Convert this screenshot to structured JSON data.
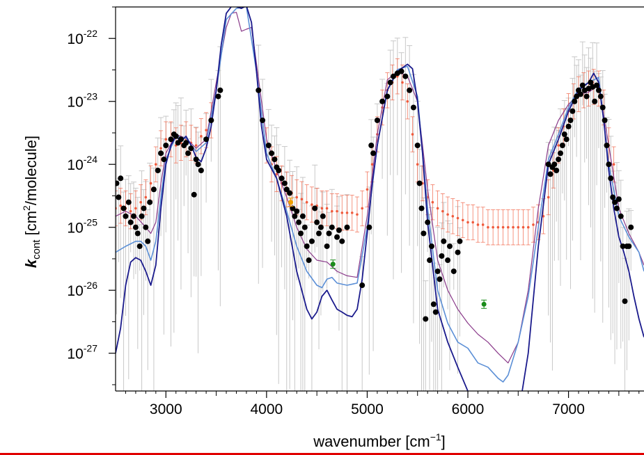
{
  "chart_data": {
    "type": "scatter",
    "title": "",
    "xlabel": "wavenumber [cm",
    "xlabel_superscript": "−1",
    "xlabel_suffix": "]",
    "ylabel_symbol": "k",
    "ylabel_subscript": "cont",
    "ylabel_unit_open": " [cm",
    "ylabel_unit_superscript": "2",
    "ylabel_unit_close": "/molecule]",
    "xlim": [
      2500,
      7750
    ],
    "ylim_log10": [
      -27.6,
      -21.5
    ],
    "y_scale": "log",
    "grid": false,
    "legend": "none",
    "x_ticks": [
      3000,
      4000,
      5000,
      6000,
      7000
    ],
    "x_tick_labels": [
      "3000",
      "4000",
      "5000",
      "6000",
      "7000"
    ],
    "y_ticks_log10": [
      -27,
      -26,
      -25,
      -24,
      -23,
      -22
    ],
    "y_tick_label_base": "10",
    "y_tick_label_exponents": [
      "-27",
      "-26",
      "-25",
      "-24",
      "-23",
      "-22"
    ],
    "colors": {
      "black_points": "#000000",
      "orange_points": "#f05a3c",
      "gray_errorbars": "#c8c8c8",
      "navy_line": "#1a1a8c",
      "lightblue_line": "#5b8fd6",
      "purple_line": "#8a3a8a",
      "green_points": "#1a8c1a",
      "gold_point": "#f0a000"
    },
    "series": [
      {
        "kind": "line",
        "color_key": "navy_line",
        "x": [
          2500,
          2550,
          2600,
          2650,
          2700,
          2750,
          2800,
          2850,
          2900,
          2950,
          3000,
          3050,
          3100,
          3150,
          3200,
          3250,
          3300,
          3350,
          3400,
          3450,
          3500,
          3550,
          3600,
          3650,
          3700,
          3750,
          3800,
          3850,
          3900,
          3950,
          4000,
          4100,
          4200,
          4300,
          4400,
          4450,
          4500,
          4550,
          4600,
          4650,
          4700,
          4750,
          4800,
          4850,
          4900,
          4950,
          5000,
          5050,
          5100,
          5200,
          5300,
          5400,
          5450,
          5500,
          5550,
          5600,
          5700,
          5800,
          5900,
          6000,
          6100,
          6200,
          6300,
          6400,
          6500,
          6600,
          6700,
          6800,
          6900,
          7000,
          7100,
          7200,
          7250,
          7300,
          7350,
          7400,
          7450,
          7500,
          7550,
          7600,
          7650,
          7700,
          7750
        ],
        "y": [
          1e-27,
          2.5e-27,
          1.2e-26,
          2.8e-26,
          3.3e-26,
          3e-26,
          2e-26,
          1.2e-26,
          2.5e-26,
          2e-25,
          1e-24,
          2e-24,
          2.8e-24,
          2.3e-24,
          2.8e-24,
          2e-24,
          1.3e-24,
          1.1e-24,
          1.8e-24,
          4e-24,
          1.5e-23,
          8e-23,
          2.5e-22,
          3.2e-22,
          3.2e-22,
          3e-22,
          3.3e-22,
          1.8e-22,
          3e-23,
          4e-24,
          1.2e-24,
          6e-25,
          1.5e-25,
          2e-26,
          5e-27,
          3.5e-27,
          4.5e-27,
          8e-27,
          1e-26,
          7e-27,
          5e-27,
          4.5e-27,
          4e-27,
          3.8e-27,
          5e-27,
          1.5e-26,
          8e-26,
          5e-25,
          2e-24,
          1.5e-23,
          3e-23,
          3.9e-23,
          3.3e-23,
          1e-23,
          1.5e-24,
          1.2e-25,
          5e-27,
          1.5e-27,
          6e-28,
          2.5e-28,
          1e-28,
          5e-29,
          4e-29,
          5e-29,
          1e-28,
          1e-27,
          5e-26,
          1e-24,
          2.5e-24,
          7e-24,
          1.5e-23,
          2e-23,
          2.8e-23,
          2e-23,
          5e-24,
          8e-25,
          2e-25,
          7e-26,
          4e-26,
          2e-26,
          8e-27,
          3.5e-27,
          1.8e-27
        ]
      },
      {
        "kind": "line",
        "color_key": "lightblue_line",
        "x": [
          2500,
          2600,
          2700,
          2750,
          2800,
          2850,
          2900,
          2950,
          3000,
          3100,
          3200,
          3300,
          3400,
          3500,
          3600,
          3700,
          3800,
          3900,
          4000,
          4100,
          4200,
          4300,
          4400,
          4500,
          4550,
          4600,
          4650,
          4700,
          4800,
          4900,
          5000,
          5100,
          5200,
          5300,
          5400,
          5500,
          5600,
          5700,
          5800,
          5900,
          6000,
          6100,
          6200,
          6300,
          6350,
          6400,
          6500,
          6600,
          6700,
          6800,
          6900,
          7000,
          7100,
          7200,
          7300,
          7400,
          7500,
          7600,
          7700,
          7750
        ],
        "y": [
          4e-26,
          5e-26,
          6e-26,
          6e-26,
          5e-26,
          3e-26,
          6e-26,
          3e-25,
          1.2e-24,
          2.8e-24,
          2.6e-24,
          1.6e-24,
          2.2e-24,
          1.5e-23,
          2e-22,
          3e-22,
          3.2e-22,
          3e-23,
          1.5e-24,
          6e-25,
          1.8e-25,
          5e-26,
          2e-26,
          1.2e-26,
          1.1e-26,
          1.5e-26,
          1.6e-26,
          1.3e-26,
          1.2e-26,
          1.3e-26,
          1e-25,
          2e-24,
          1.5e-23,
          3.2e-23,
          3.6e-23,
          1.2e-23,
          2e-25,
          1e-26,
          3e-27,
          1.5e-27,
          1.2e-27,
          7e-28,
          6e-28,
          4e-28,
          3.5e-28,
          4.5e-28,
          1.5e-27,
          8e-27,
          1e-25,
          1.2e-24,
          3e-24,
          8e-24,
          1.6e-23,
          2e-23,
          2.4e-23,
          1e-24,
          1.5e-25,
          7e-26,
          4e-26,
          2e-26
        ]
      },
      {
        "kind": "line",
        "color_key": "purple_line",
        "x": [
          2500,
          2600,
          2700,
          2800,
          2850,
          2900,
          2950,
          3000,
          3100,
          3200,
          3300,
          3400,
          3500,
          3600,
          3650,
          3700,
          3750,
          3800,
          3850,
          3900,
          4000,
          4100,
          4200,
          4300,
          4400,
          4500,
          4600,
          4700,
          4800,
          4900,
          5000,
          5100,
          5200,
          5300,
          5400,
          5500,
          5600,
          5700,
          5800,
          5900,
          6000,
          6100,
          6200,
          6300,
          6400,
          6500,
          6600,
          6700,
          6800,
          6900,
          7000,
          7100,
          7200,
          7300,
          7400,
          7500,
          7600,
          7700,
          7750
        ],
        "y": [
          1.5e-25,
          1.8e-25,
          1.5e-25,
          1e-25,
          8e-26,
          1.2e-25,
          5e-25,
          1.5e-24,
          3e-24,
          2.6e-24,
          1.8e-24,
          2.5e-24,
          2e-23,
          1.5e-22,
          2.5e-22,
          2.6e-22,
          1.3e-22,
          1.4e-22,
          1.5e-22,
          4e-23,
          2.5e-24,
          8e-25,
          3e-25,
          1e-25,
          4.5e-26,
          3e-26,
          2.8e-26,
          2e-26,
          1.7e-26,
          1.6e-26,
          1.5e-25,
          3e-24,
          2.2e-23,
          3e-23,
          2.5e-23,
          1e-23,
          4e-25,
          3e-26,
          1e-26,
          5e-27,
          3e-27,
          2e-27,
          1.5e-27,
          1e-27,
          7e-28,
          1.5e-27,
          1e-26,
          2e-25,
          2e-24,
          5e-24,
          9e-24,
          1.3e-23,
          1.4e-23,
          1.8e-23,
          2e-24,
          2e-25,
          8e-26,
          4e-26,
          2.5e-26
        ]
      },
      {
        "kind": "errorbar-points",
        "color_key": "orange_points",
        "x": [
          2500,
          2550,
          2600,
          2650,
          2700,
          2750,
          2800,
          2850,
          2900,
          2950,
          3000,
          3050,
          3100,
          3150,
          3200,
          3250,
          3300,
          3350,
          3400,
          3450,
          4000,
          4050,
          4100,
          4150,
          4200,
          4250,
          4300,
          4350,
          4400,
          4450,
          4500,
          4550,
          4600,
          4650,
          4700,
          4750,
          4800,
          4850,
          4900,
          4950,
          5000,
          5050,
          5100,
          5150,
          5200,
          5250,
          5300,
          5350,
          5400,
          5450,
          5500,
          5550,
          5600,
          5650,
          5700,
          5750,
          5800,
          5850,
          5900,
          5950,
          6000,
          6050,
          6100,
          6150,
          6200,
          6250,
          6300,
          6350,
          6400,
          6450,
          6500,
          6550,
          6600,
          6650,
          6700,
          6750,
          6800,
          6850,
          6900,
          6950,
          7000,
          7050,
          7100,
          7150,
          7200,
          7250,
          7300,
          7350,
          7400,
          7450
        ],
        "y": [
          2e-25,
          2.2e-25,
          2e-25,
          1.8e-25,
          2e-25,
          2.5e-25,
          3e-25,
          5e-25,
          1e-24,
          1.8e-24,
          2.5e-24,
          2.5e-24,
          2e-24,
          2.2e-24,
          2.5e-24,
          2.2e-24,
          2e-24,
          2.8e-24,
          3.5e-24,
          5e-24,
          2e-24,
          1e-24,
          7e-25,
          5e-25,
          4e-25,
          3.5e-25,
          3e-25,
          2.8e-25,
          2.5e-25,
          2.3e-25,
          2.2e-25,
          2e-25,
          2e-25,
          1.8e-25,
          1.8e-25,
          1.7e-25,
          1.7e-25,
          1.7e-25,
          1.6e-25,
          2e-25,
          4e-25,
          1e-24,
          3e-24,
          8e-24,
          1.5e-23,
          2e-23,
          2.5e-23,
          2e-23,
          1e-23,
          3e-24,
          1e-24,
          5e-25,
          3e-25,
          2.5e-25,
          2e-25,
          1.8e-25,
          1.6e-25,
          1.5e-25,
          1.4e-25,
          1.3e-25,
          1.2e-25,
          1.2e-25,
          1.1e-25,
          1.1e-25,
          1e-25,
          1e-25,
          1e-25,
          1e-25,
          1e-25,
          1e-25,
          1e-25,
          1e-25,
          1e-25,
          1.1e-25,
          1.2e-25,
          1.5e-25,
          3e-25,
          8e-25,
          2e-24,
          4e-24,
          7e-24,
          1e-23,
          1.3e-23,
          1.5e-23,
          1.6e-23,
          1.7e-23,
          1.6e-23,
          8e-24,
          2e-24,
          1e-24
        ]
      },
      {
        "kind": "points",
        "color_key": "black_points",
        "x": [
          2510,
          2530,
          2550,
          2580,
          2600,
          2630,
          2650,
          2680,
          2700,
          2720,
          2740,
          2760,
          2780,
          2800,
          2820,
          2840,
          2880,
          2920,
          2950,
          2980,
          3000,
          3050,
          3080,
          3100,
          3120,
          3150,
          3180,
          3200,
          3220,
          3250,
          3280,
          3300,
          3320,
          3350,
          3400,
          3450,
          3520,
          3540,
          3920,
          3960,
          4020,
          4050,
          4080,
          4100,
          4120,
          4150,
          4180,
          4200,
          4230,
          4260,
          4280,
          4300,
          4320,
          4340,
          4360,
          4380,
          4400,
          4420,
          4450,
          4480,
          4500,
          4520,
          4540,
          4560,
          4600,
          4620,
          4650,
          4700,
          4720,
          4750,
          4800,
          4950,
          5020,
          5040,
          5060,
          5100,
          5150,
          5200,
          5230,
          5260,
          5300,
          5340,
          5380,
          5420,
          5460,
          5500,
          5520,
          5540,
          5560,
          5580,
          5600,
          5620,
          5640,
          5660,
          5680,
          5700,
          5720,
          5740,
          5760,
          5800,
          5820,
          5860,
          5900,
          5920,
          6800,
          6820,
          6840,
          6860,
          6880,
          6900,
          6920,
          6940,
          6960,
          6980,
          7000,
          7020,
          7040,
          7060,
          7080,
          7100,
          7120,
          7140,
          7160,
          7180,
          7200,
          7220,
          7240,
          7260,
          7280,
          7300,
          7320,
          7340,
          7360,
          7380,
          7400,
          7420,
          7440,
          7460,
          7480,
          7500,
          7520,
          7540,
          7560,
          7580,
          7600,
          7620
        ],
        "y": [
          5e-25,
          3e-25,
          6e-25,
          2e-25,
          1.5e-25,
          2.5e-25,
          1.2e-25,
          1.5e-25,
          1e-25,
          8e-26,
          5e-26,
          1.5e-25,
          2e-25,
          1e-25,
          6e-26,
          2.5e-25,
          4e-25,
          8e-25,
          1.5e-24,
          1.2e-24,
          2e-24,
          2.5e-24,
          3e-24,
          2.8e-24,
          2.2e-24,
          2.5e-24,
          2e-24,
          2.2e-24,
          1.5e-24,
          1.8e-24,
          3.3e-25,
          1.2e-24,
          1e-24,
          8e-25,
          2.5e-24,
          5e-24,
          1.2e-23,
          1.5e-23,
          1.5e-23,
          5e-24,
          2e-24,
          1.5e-24,
          1.2e-24,
          9e-25,
          8e-25,
          6e-25,
          5e-25,
          4e-25,
          3.5e-25,
          2e-25,
          1.5e-25,
          1.8e-25,
          1.2e-25,
          8e-26,
          1.5e-25,
          1e-25,
          5e-26,
          3e-26,
          6e-26,
          2e-25,
          1.2e-25,
          8e-26,
          1e-25,
          1.5e-25,
          5e-26,
          8e-26,
          1e-25,
          7e-26,
          9e-26,
          6e-26,
          1e-25,
          1.2e-26,
          1e-25,
          2e-24,
          1.5e-24,
          5e-24,
          1e-23,
          1.2e-23,
          2e-23,
          2.5e-23,
          2.8e-23,
          3e-23,
          2.5e-23,
          1.5e-23,
          8e-24,
          2e-24,
          5e-25,
          2e-25,
          8e-26,
          3.5e-27,
          1.2e-25,
          3e-26,
          5e-26,
          6e-27,
          4.5e-27,
          2e-26,
          1.5e-26,
          3.5e-26,
          6e-26,
          3e-26,
          5e-26,
          2e-26,
          4e-26,
          6e-26,
          1e-24,
          7e-25,
          9e-25,
          1e-24,
          8e-25,
          1.2e-24,
          1.5e-24,
          2e-24,
          3e-24,
          2.5e-24,
          4e-24,
          5e-24,
          7e-24,
          1e-23,
          1.2e-23,
          1.5e-23,
          1.3e-23,
          1.8e-23,
          1.5e-23,
          1.2e-23,
          1.6e-23,
          2e-23,
          1.7e-23,
          1e-23,
          1.8e-23,
          1.5e-23,
          1.2e-23,
          8e-24,
          5e-24,
          2e-24,
          1e-24,
          6e-25,
          3e-25,
          2.5e-25,
          2e-25,
          2.8e-25,
          1.5e-25,
          5e-26,
          6.7e-27,
          5e-26,
          5e-26,
          1e-25
        ]
      },
      {
        "kind": "points",
        "color_key": "green_points",
        "x": [
          4660,
          6160
        ],
        "y": [
          2.6e-26,
          6e-27
        ]
      },
      {
        "kind": "points",
        "color_key": "gold_point",
        "x": [
          4240
        ],
        "y": [
          2.5e-25
        ]
      }
    ]
  }
}
